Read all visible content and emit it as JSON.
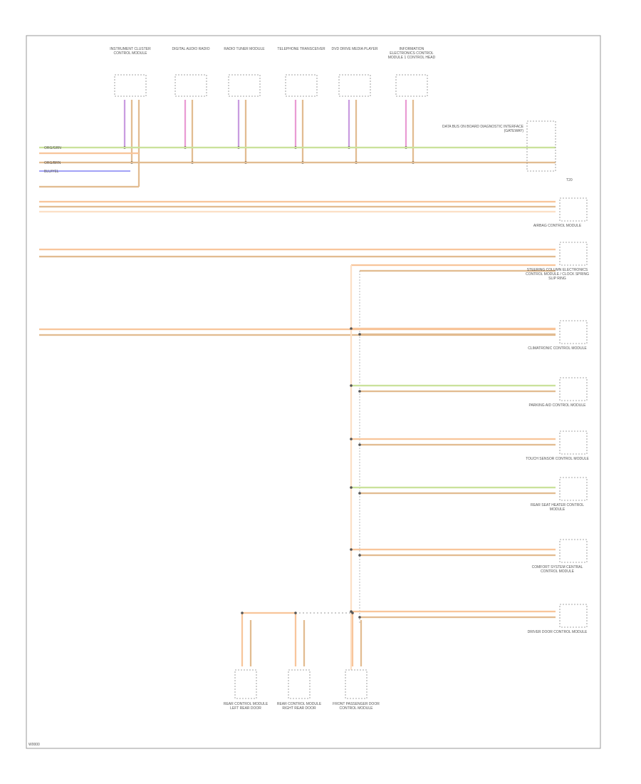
{
  "diagram": {
    "top_modules": [
      {
        "label": "INSTRUMENT CLUSTER CONTROL MODULE"
      },
      {
        "label": "DIGITAL AUDIO RADIO"
      },
      {
        "label": "RADIO TUNER MODULE"
      },
      {
        "label": "TELEPHONE TRANSCEIVER"
      },
      {
        "label": "DVD DRIVE MEDIA PLAYER"
      },
      {
        "label": "INFORMATION ELECTRONICS CONTROL MODULE 1 CONTROL HEAD"
      }
    ],
    "connector_label": "DATA BUS ON BOARD DIAGNOSTIC INTERFACE (GATEWAY)",
    "ground_label": "T20",
    "right_modules": [
      {
        "label": "AIRBAG CONTROL MODULE"
      },
      {
        "label": "STEERING COLUMN ELECTRONICS CONTROL MODULE / CLOCK SPRING SLIP RING"
      },
      {
        "label": "CLIMATRONIC CONTROL MODULE"
      },
      {
        "label": "PARKING AID CONTROL MODULE"
      },
      {
        "label": "TOUCH SENSOR CONTROL MODULE"
      },
      {
        "label": "REAR SEAT HEATER CONTROL MODULE"
      },
      {
        "label": "COMFORT SYSTEM CENTRAL CONTROL MODULE"
      },
      {
        "label": "DRIVER DOOR CONTROL MODULE"
      }
    ],
    "bottom_modules": [
      {
        "label": "REAR CONTROL MODULE LEFT REAR DOOR"
      },
      {
        "label": "REAR CONTROL MODULE RIGHT REAR DOOR"
      },
      {
        "label": "FRONT PASSENGER DOOR CONTROL MODULE"
      }
    ],
    "wire_labels": [
      "ORG/GRN",
      "ORG/BRN",
      "BLU/YEL"
    ],
    "footer": "W0000"
  }
}
